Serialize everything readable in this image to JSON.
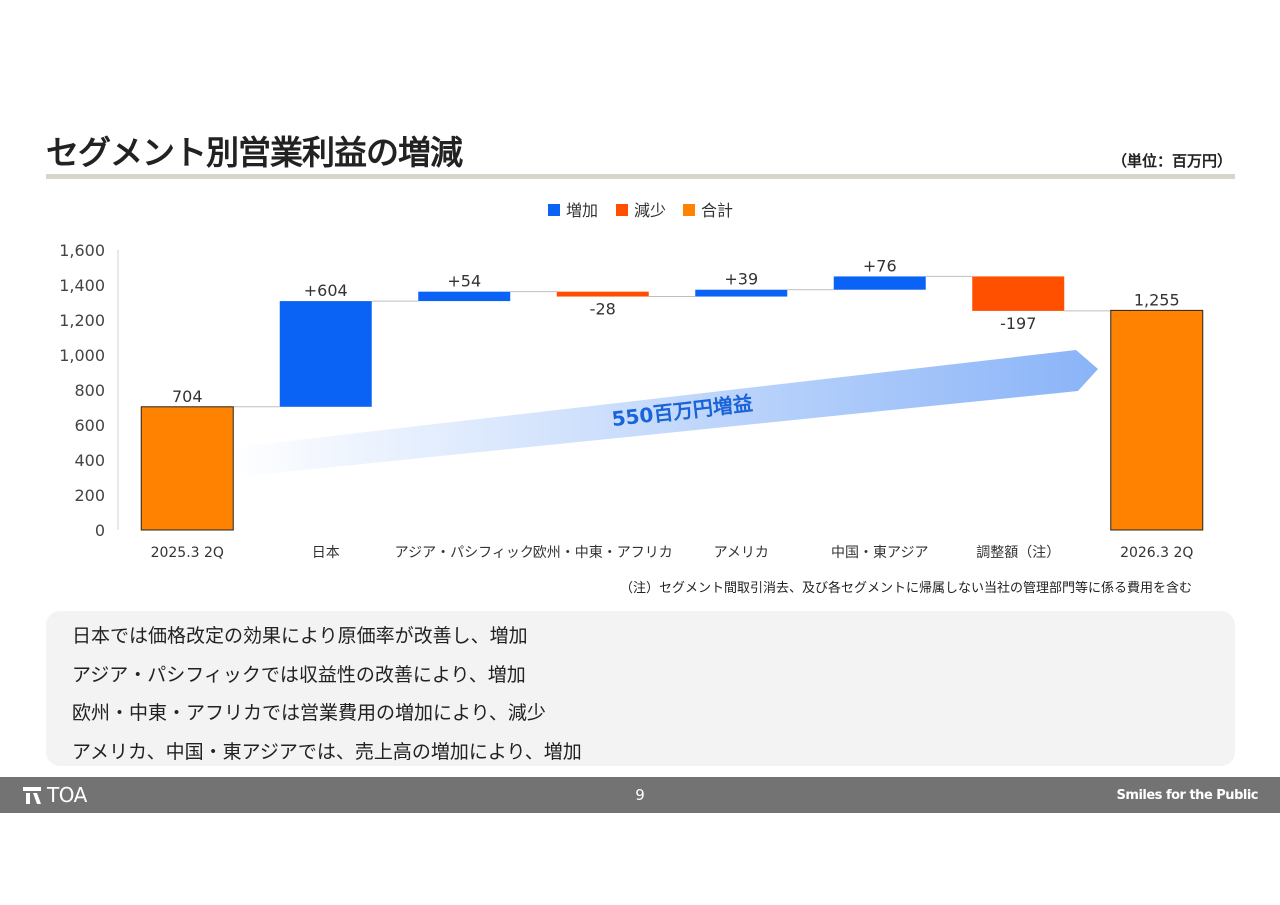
{
  "header": {
    "title": "セグメント別営業利益の増減",
    "unit": "（単位：百万円）"
  },
  "chart_data": {
    "type": "bar",
    "subtype": "waterfall",
    "legend": [
      {
        "name": "増加",
        "color": "#0b63f6"
      },
      {
        "name": "減少",
        "color": "#ff5000"
      },
      {
        "name": "合計",
        "color": "#ff8200"
      }
    ],
    "legend_position": "top-center",
    "categories": [
      "2025.3 2Q",
      "日本",
      "アジア・パシフィック",
      "欧州・中東・アフリカ",
      "アメリカ",
      "中国・東アジア",
      "調整額（注）",
      "2026.3 2Q"
    ],
    "values": [
      704,
      604,
      54,
      -28,
      39,
      76,
      -197,
      1255
    ],
    "kinds": [
      "total",
      "increase",
      "increase",
      "decrease",
      "increase",
      "increase",
      "decrease",
      "total"
    ],
    "data_labels": [
      "704",
      "+604",
      "+54",
      "-28",
      "+39",
      "+76",
      "-197",
      "1,255"
    ],
    "ylim": [
      0,
      1600
    ],
    "yticks": [
      0,
      200,
      400,
      600,
      800,
      1000,
      1200,
      1400,
      1600
    ],
    "ytick_labels": [
      "0",
      "200",
      "400",
      "600",
      "800",
      "1,000",
      "1,200",
      "1,400",
      "1,600"
    ],
    "grid": false,
    "annotation": "550百万円増益"
  },
  "note": "（注）セグメント間取引消去、及び各セグメントに帰属しない当社の管理部門等に係る費用を含む",
  "summary": [
    "日本では価格改定の効果により原価率が改善し、増加",
    "アジア・パシフィックでは収益性の改善により、増加",
    "欧州・中東・アフリカでは営業費用の増加により、減少",
    "アメリカ、中国・東アジアでは、売上高の増加により、増加"
  ],
  "footer": {
    "logo_text": "TOA",
    "page_number": "9",
    "tagline": "Smiles for the Public"
  }
}
